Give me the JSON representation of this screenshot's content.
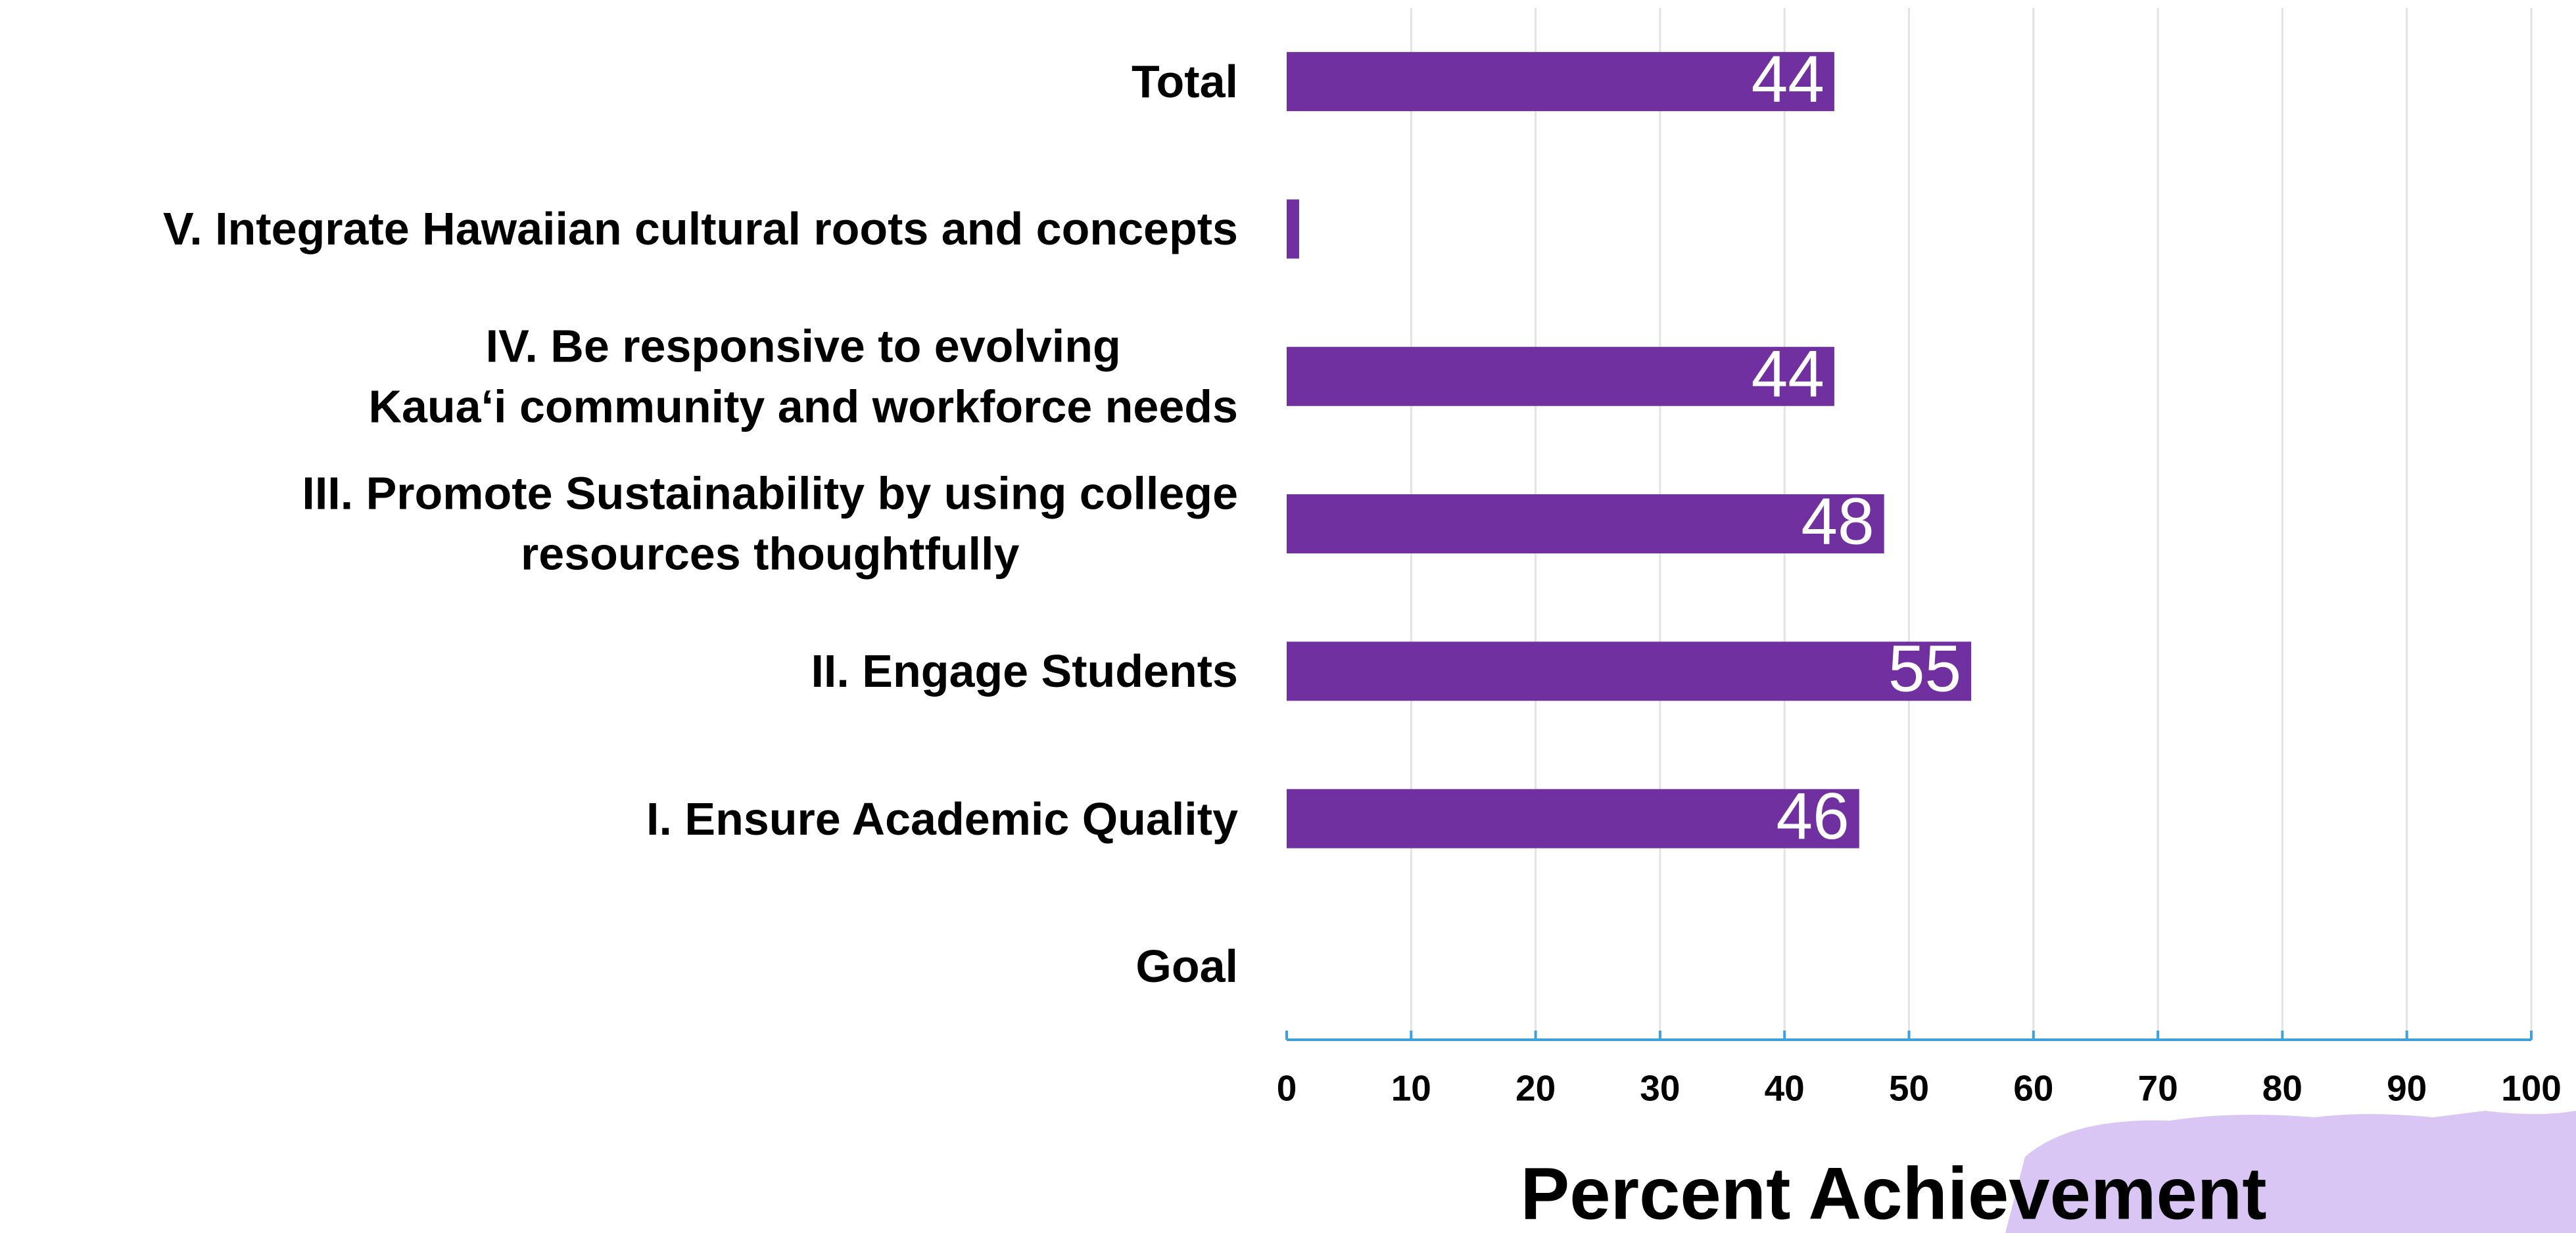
{
  "chart_data": {
    "type": "bar",
    "orientation": "horizontal",
    "xlabel": "Percent Achievement",
    "categories": [
      "Total",
      "V. Integrate Hawaiian cultural roots and concepts",
      "IV. Be responsive to evolving\nKaua‘i community and workforce needs",
      "III. Promote Sustainability by using college\nresources thoughtfully",
      "II. Engage Students",
      "I. Ensure Academic Quality",
      "Goal"
    ],
    "values": [
      44,
      1,
      44,
      48,
      55,
      46,
      null
    ],
    "color": "#7030a0",
    "xlim": [
      0,
      100
    ],
    "xticks": [
      0,
      10,
      20,
      30,
      40,
      50,
      60,
      70,
      80,
      90,
      100
    ],
    "grid": true
  }
}
